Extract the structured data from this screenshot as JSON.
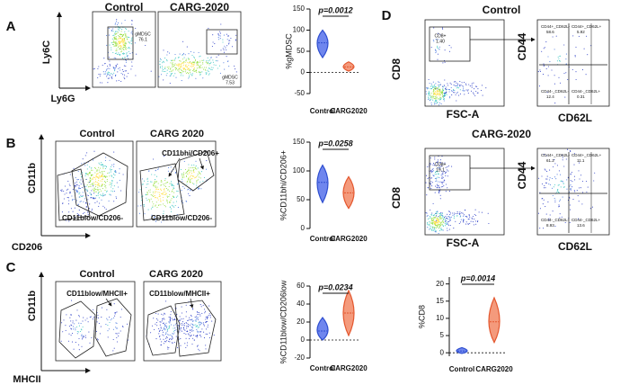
{
  "panels": {
    "a": {
      "letter": "A",
      "title_control": "Control",
      "title_treated": "CARG-2020",
      "y_axis": "Ly6C",
      "x_axis": "Ly6G",
      "gates": [
        {
          "name": "gMDSC",
          "value": "76.1"
        },
        {
          "name": "gMDSC",
          "value": "7.53"
        }
      ]
    },
    "b": {
      "letter": "B",
      "title_control": "Control",
      "title_treated": "CARG 2020",
      "y_axis": "CD11b",
      "x_axis": "CD206",
      "gates": [
        "CD11bhi/CD206+",
        "CD11blow/CD206-",
        "CD11blow/CD206-"
      ]
    },
    "c": {
      "letter": "C",
      "title_control": "Control",
      "title_treated": "CARG 2020",
      "y_axis": "CD11b",
      "x_axis": "MHCII",
      "gates": [
        "CD11blow/MHCII+",
        "CD11blow/MHCII+"
      ]
    },
    "d": {
      "letter": "D",
      "rows": [
        {
          "title": "Control",
          "y_axis": "CD8",
          "x_axis": "FSC-A",
          "gate": {
            "name": "CD8+",
            "value": "1.40"
          },
          "quad_y_axis": "CD44",
          "quad_x_axis": "CD62L",
          "quadrants": [
            {
              "name": "CD44+_CD62L-",
              "value": "58.6"
            },
            {
              "name": "CD44+_CD62L+",
              "value": "5.92"
            },
            {
              "name": "CD44-_CD62L-",
              "value": "12.4"
            },
            {
              "name": "CD44-_CD62L+",
              "value": "0.31"
            }
          ]
        },
        {
          "title": "CARG-2020",
          "y_axis": "CD8",
          "x_axis": "FSC-A",
          "gate": {
            "name": "CD8+",
            "value": "19.1"
          },
          "quad_y_axis": "CD44",
          "quad_x_axis": "CD62L",
          "quadrants": [
            {
              "name": "CD44+_CD62L-",
              "value": "61.2"
            },
            {
              "name": "CD44+_CD62L+",
              "value": "11.1"
            },
            {
              "name": "CD44-_CD62L-",
              "value": "8.93"
            },
            {
              "name": "CD44-_CD62L+",
              "value": "13.6"
            }
          ]
        }
      ]
    }
  },
  "chart_data": [
    {
      "type": "violin",
      "y_label": "%gMDSC",
      "p_label": "p=0.0012",
      "categories": [
        "Control",
        "CARG2020"
      ],
      "values": [
        70,
        13
      ],
      "mins": [
        35,
        3
      ],
      "maxs": [
        100,
        25
      ],
      "colors": [
        "#2f4fd0",
        "#e4572e"
      ],
      "fill_colors": [
        "#6f86ee",
        "#f49a7c"
      ],
      "ylim": [
        -50,
        150
      ],
      "yticks": [
        -50,
        0,
        50,
        100,
        150
      ],
      "zero_line": true
    },
    {
      "type": "violin",
      "y_label": "%CD11bhi/CD206+",
      "p_label": "p=0.0258",
      "categories": [
        "Control",
        "CARG2020"
      ],
      "values": [
        80,
        62
      ],
      "mins": [
        45,
        35
      ],
      "maxs": [
        110,
        90
      ],
      "colors": [
        "#2f4fd0",
        "#e4572e"
      ],
      "fill_colors": [
        "#6f86ee",
        "#f49a7c"
      ],
      "ylim": [
        0,
        150
      ],
      "yticks": [
        0,
        50,
        100,
        150
      ],
      "zero_line": false
    },
    {
      "type": "violin",
      "y_label": "%CD11blow/CD206low",
      "p_label": "p=0.0234",
      "categories": [
        "Control",
        "CARG2020"
      ],
      "values": [
        10,
        30
      ],
      "mins": [
        0,
        5
      ],
      "maxs": [
        25,
        55
      ],
      "colors": [
        "#2f4fd0",
        "#e4572e"
      ],
      "fill_colors": [
        "#6f86ee",
        "#f49a7c"
      ],
      "ylim": [
        -20,
        60
      ],
      "yticks": [
        -20,
        0,
        20,
        40,
        60
      ],
      "zero_line": true
    },
    {
      "type": "violin",
      "y_label": "%CD8",
      "p_label": "p=0.0014",
      "categories": [
        "Control",
        "CARG2020"
      ],
      "values": [
        0.5,
        9
      ],
      "mins": [
        -0.2,
        3
      ],
      "maxs": [
        1.5,
        16
      ],
      "colors": [
        "#2f4fd0",
        "#e4572e"
      ],
      "fill_colors": [
        "#6f86ee",
        "#f49a7c"
      ],
      "ylim": [
        -1,
        22
      ],
      "yticks": [
        0,
        5,
        10,
        15,
        20
      ],
      "zero_line": true
    }
  ]
}
